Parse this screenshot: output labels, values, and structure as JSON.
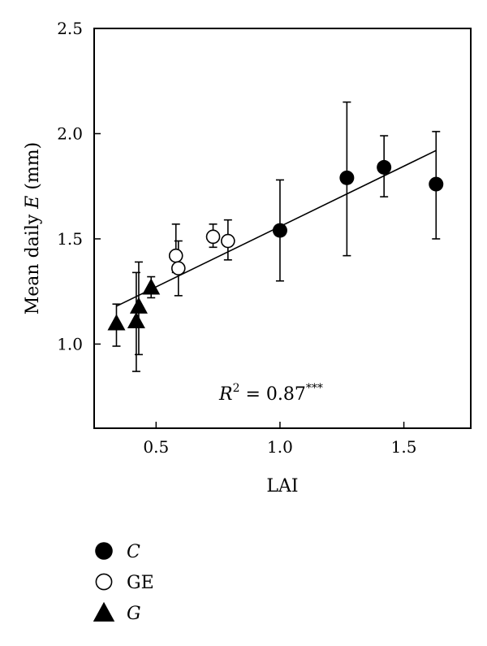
{
  "chart_data": {
    "type": "scatter",
    "xlabel": "LAI",
    "ylabel_prefix": "Mean daily ",
    "ylabel_var": "E",
    "ylabel_suffix": " (mm)",
    "xlim": [
      0.25,
      1.77
    ],
    "ylim": [
      0.6,
      2.5
    ],
    "xticks": [
      0.5,
      1.0,
      1.5
    ],
    "yticks": [
      1.0,
      1.5,
      2.0,
      2.5
    ],
    "series": [
      {
        "name": "C",
        "marker": "filled-circle",
        "points": [
          {
            "x": 1.0,
            "y": 1.54,
            "err_low": 1.3,
            "err_high": 1.78
          },
          {
            "x": 1.27,
            "y": 1.79,
            "err_low": 1.42,
            "err_high": 2.15
          },
          {
            "x": 1.42,
            "y": 1.84,
            "err_low": 1.7,
            "err_high": 1.99
          },
          {
            "x": 1.63,
            "y": 1.76,
            "err_low": 1.5,
            "err_high": 2.01
          }
        ]
      },
      {
        "name": "GE",
        "marker": "open-circle",
        "points": [
          {
            "x": 0.58,
            "y": 1.42,
            "err_low": 1.34,
            "err_high": 1.57
          },
          {
            "x": 0.59,
            "y": 1.36,
            "err_low": 1.23,
            "err_high": 1.49
          },
          {
            "x": 0.73,
            "y": 1.51,
            "err_low": 1.46,
            "err_high": 1.57
          },
          {
            "x": 0.79,
            "y": 1.49,
            "err_low": 1.4,
            "err_high": 1.59
          }
        ]
      },
      {
        "name": "G",
        "marker": "filled-triangle",
        "points": [
          {
            "x": 0.34,
            "y": 1.1,
            "err_low": 0.99,
            "err_high": 1.19
          },
          {
            "x": 0.42,
            "y": 1.11,
            "err_low": 0.87,
            "err_high": 1.34
          },
          {
            "x": 0.43,
            "y": 1.18,
            "err_low": 0.95,
            "err_high": 1.39
          },
          {
            "x": 0.48,
            "y": 1.27,
            "err_low": 1.22,
            "err_high": 1.32
          }
        ]
      }
    ],
    "trendline": {
      "x": [
        0.34,
        1.63
      ],
      "y": [
        1.18,
        1.92
      ]
    },
    "annotation": {
      "var": "R",
      "sup": "2",
      "text": " = 0.87",
      "sig": "***"
    },
    "legend": [
      {
        "marker": "filled-circle",
        "label": "C",
        "italic": true
      },
      {
        "marker": "open-circle",
        "label": "GE",
        "italic": false
      },
      {
        "marker": "filled-triangle",
        "label": "G",
        "italic": true
      }
    ]
  }
}
